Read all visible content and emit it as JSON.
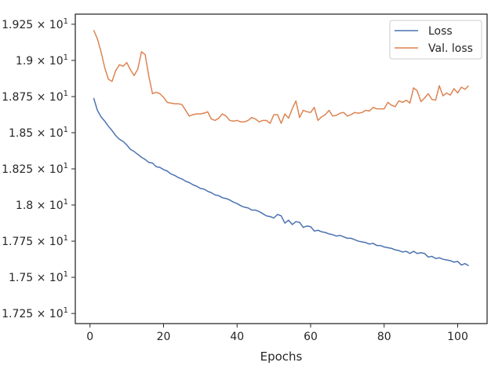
{
  "chart_data": {
    "type": "line",
    "title": "",
    "xlabel": "Epochs",
    "ylabel": "",
    "xlim": [
      -4,
      108
    ],
    "ylim": [
      17.18,
      19.32
    ],
    "xticks": [
      0,
      20,
      40,
      60,
      80,
      100
    ],
    "xtick_labels": [
      "0",
      "20",
      "40",
      "60",
      "80",
      "100"
    ],
    "yticks": [
      17.25,
      17.5,
      17.75,
      18.0,
      18.25,
      18.5,
      18.75,
      19.0,
      19.25
    ],
    "ytick_labels": [
      {
        "mantissa": "1.725",
        "base": "10",
        "exp": "1"
      },
      {
        "mantissa": "1.75",
        "base": "10",
        "exp": "1"
      },
      {
        "mantissa": "1.775",
        "base": "10",
        "exp": "1"
      },
      {
        "mantissa": "1.8",
        "base": "10",
        "exp": "1"
      },
      {
        "mantissa": "1.825",
        "base": "10",
        "exp": "1"
      },
      {
        "mantissa": "1.85",
        "base": "10",
        "exp": "1"
      },
      {
        "mantissa": "1.875",
        "base": "10",
        "exp": "1"
      },
      {
        "mantissa": "1.9",
        "base": "10",
        "exp": "1"
      },
      {
        "mantissa": "1.925",
        "base": "10",
        "exp": "1"
      }
    ],
    "grid": false,
    "legend": "top-right",
    "series": [
      {
        "name": "Loss",
        "color": "#4c72b0",
        "x": [
          1,
          2,
          3,
          4,
          5,
          6,
          7,
          8,
          9,
          10,
          11,
          12,
          13,
          14,
          15,
          16,
          17,
          18,
          19,
          20,
          21,
          22,
          23,
          24,
          25,
          26,
          27,
          28,
          29,
          30,
          31,
          32,
          33,
          34,
          35,
          36,
          37,
          38,
          39,
          40,
          41,
          42,
          43,
          44,
          45,
          46,
          47,
          48,
          49,
          50,
          51,
          52,
          53,
          54,
          55,
          56,
          57,
          58,
          59,
          60,
          61,
          62,
          63,
          64,
          65,
          66,
          67,
          68,
          69,
          70,
          71,
          72,
          73,
          74,
          75,
          76,
          77,
          78,
          79,
          80,
          81,
          82,
          83,
          84,
          85,
          86,
          87,
          88,
          89,
          90,
          91,
          92,
          93,
          94,
          95,
          96,
          97,
          98,
          99,
          100,
          101,
          102,
          103
        ],
        "values": [
          18.74,
          18.655,
          18.61,
          18.58,
          18.545,
          18.515,
          18.48,
          18.455,
          18.44,
          18.415,
          18.385,
          18.37,
          18.35,
          18.33,
          18.315,
          18.295,
          18.29,
          18.265,
          18.26,
          18.245,
          18.235,
          18.215,
          18.205,
          18.19,
          18.18,
          18.165,
          18.155,
          18.14,
          18.13,
          18.115,
          18.11,
          18.095,
          18.085,
          18.07,
          18.065,
          18.05,
          18.045,
          18.035,
          18.02,
          18.01,
          17.995,
          17.985,
          17.98,
          17.965,
          17.965,
          17.955,
          17.94,
          17.925,
          17.92,
          17.91,
          17.935,
          17.925,
          17.875,
          17.895,
          17.865,
          17.885,
          17.88,
          17.845,
          17.855,
          17.85,
          17.82,
          17.825,
          17.815,
          17.81,
          17.8,
          17.795,
          17.785,
          17.79,
          17.78,
          17.77,
          17.77,
          17.76,
          17.75,
          17.745,
          17.74,
          17.73,
          17.735,
          17.72,
          17.72,
          17.71,
          17.705,
          17.7,
          17.69,
          17.685,
          17.675,
          17.68,
          17.665,
          17.68,
          17.665,
          17.67,
          17.665,
          17.64,
          17.645,
          17.63,
          17.635,
          17.625,
          17.62,
          17.615,
          17.605,
          17.61,
          17.585,
          17.595,
          17.58
        ]
      },
      {
        "name": "Val. loss",
        "color": "#dd8452",
        "x": [
          1,
          2,
          3,
          4,
          5,
          6,
          7,
          8,
          9,
          10,
          11,
          12,
          13,
          14,
          15,
          16,
          17,
          18,
          19,
          20,
          21,
          22,
          23,
          24,
          25,
          26,
          27,
          28,
          29,
          30,
          31,
          32,
          33,
          34,
          35,
          36,
          37,
          38,
          39,
          40,
          41,
          42,
          43,
          44,
          45,
          46,
          47,
          48,
          49,
          50,
          51,
          52,
          53,
          54,
          55,
          56,
          57,
          58,
          59,
          60,
          61,
          62,
          63,
          64,
          65,
          66,
          67,
          68,
          69,
          70,
          71,
          72,
          73,
          74,
          75,
          76,
          77,
          78,
          79,
          80,
          81,
          82,
          83,
          84,
          85,
          86,
          87,
          88,
          89,
          90,
          91,
          92,
          93,
          94,
          95,
          96,
          97,
          98,
          99,
          100,
          101,
          102,
          103
        ],
        "values": [
          19.21,
          19.15,
          19.06,
          18.95,
          18.87,
          18.855,
          18.93,
          18.97,
          18.96,
          18.985,
          18.935,
          18.895,
          18.94,
          19.06,
          19.04,
          18.89,
          18.77,
          18.78,
          18.77,
          18.745,
          18.71,
          18.705,
          18.7,
          18.7,
          18.695,
          18.655,
          18.615,
          18.625,
          18.63,
          18.63,
          18.635,
          18.645,
          18.595,
          18.585,
          18.6,
          18.63,
          18.615,
          18.585,
          18.58,
          18.585,
          18.575,
          18.575,
          18.585,
          18.605,
          18.595,
          18.575,
          18.585,
          18.585,
          18.565,
          18.625,
          18.625,
          18.565,
          18.63,
          18.6,
          18.665,
          18.72,
          18.605,
          18.655,
          18.645,
          18.64,
          18.675,
          18.585,
          18.61,
          18.625,
          18.655,
          18.615,
          18.62,
          18.635,
          18.64,
          18.615,
          18.625,
          18.64,
          18.635,
          18.64,
          18.655,
          18.65,
          18.675,
          18.665,
          18.665,
          18.665,
          18.71,
          18.69,
          18.68,
          18.72,
          18.71,
          18.725,
          18.705,
          18.81,
          18.79,
          18.715,
          18.74,
          18.77,
          18.73,
          18.725,
          18.825,
          18.755,
          18.775,
          18.76,
          18.805,
          18.775,
          18.815,
          18.8,
          18.825
        ]
      }
    ]
  }
}
